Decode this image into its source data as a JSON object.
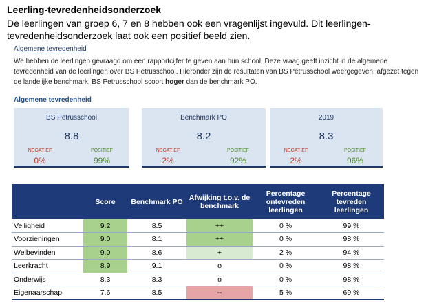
{
  "heading": "Leerling-tevredenheidsonderzoek",
  "intro": "De leerlingen van groep 6, 7 en 8 hebben ook een vragenlijst ingevuld. Dit leerlingen-tevredenheidsonderzoek laat ook een positief beeld zien.",
  "section": {
    "label": "Algemene tevredenheid",
    "text_before": "We hebben de leerlingen gevraagd om een rapportcijfer te geven aan hun school. Deze vraag geeft inzicht in de algemene tevredenheid van de leerlingen over BS Petrusschool. Hieronder zijn de resultaten van BS Petrusschool weergegeven, afgezet tegen de landelijke benchmark. BS Petrusschool scoort ",
    "bold": "hoger",
    "text_after": " dan de benchmark PO."
  },
  "cards_title": "Algemene tevredenheid",
  "cards": [
    {
      "name": "BS Petrusschool",
      "score": "8.8",
      "neg_label": "NEGATIEF",
      "neg_value": "0%",
      "pos_label": "POSITIEF",
      "pos_value": "99%"
    },
    {
      "name": "Benchmark PO",
      "score": "8.2",
      "neg_label": "NEGATIEF",
      "neg_value": "2%",
      "pos_label": "POSITIEF",
      "pos_value": "92%"
    },
    {
      "name": "2019",
      "score": "8.3",
      "neg_label": "NEGATIEF",
      "neg_value": "2%",
      "pos_label": "POSITIEF",
      "pos_value": "96%"
    }
  ],
  "table": {
    "headers": [
      "",
      "Score",
      "Benchmark PO",
      "Afwijking t.o.v. de benchmark",
      "Percentage ontevreden leerlingen",
      "Percentage tevreden leerlingen"
    ],
    "rows": [
      {
        "label": "Veiligheid",
        "score": "9.2",
        "bench": "8.5",
        "dev": "++",
        "ontevreden": "0 %",
        "tevreden": "99 %",
        "score_hl": "g-strong",
        "dev_hl": "g-strong"
      },
      {
        "label": "Voorzieningen",
        "score": "9.0",
        "bench": "8.1",
        "dev": "++",
        "ontevreden": "0 %",
        "tevreden": "98 %",
        "score_hl": "g-strong",
        "dev_hl": "g-strong"
      },
      {
        "label": "Welbevinden",
        "score": "9.0",
        "bench": "8.6",
        "dev": "+",
        "ontevreden": "2 %",
        "tevreden": "94 %",
        "score_hl": "g-strong",
        "dev_hl": "g-light"
      },
      {
        "label": "Leerkracht",
        "score": "8.9",
        "bench": "9.1",
        "dev": "o",
        "ontevreden": "0 %",
        "tevreden": "98 %",
        "score_hl": "g-strong",
        "dev_hl": ""
      },
      {
        "label": "Onderwijs",
        "score": "8.3",
        "bench": "8.3",
        "dev": "o",
        "ontevreden": "0 %",
        "tevreden": "98 %",
        "score_hl": "",
        "dev_hl": ""
      },
      {
        "label": "Eigenaarschap",
        "score": "7.6",
        "bench": "8.5",
        "dev": "--",
        "ontevreden": "5 %",
        "tevreden": "69 %",
        "score_hl": "",
        "dev_hl": "r-strong"
      }
    ]
  }
}
